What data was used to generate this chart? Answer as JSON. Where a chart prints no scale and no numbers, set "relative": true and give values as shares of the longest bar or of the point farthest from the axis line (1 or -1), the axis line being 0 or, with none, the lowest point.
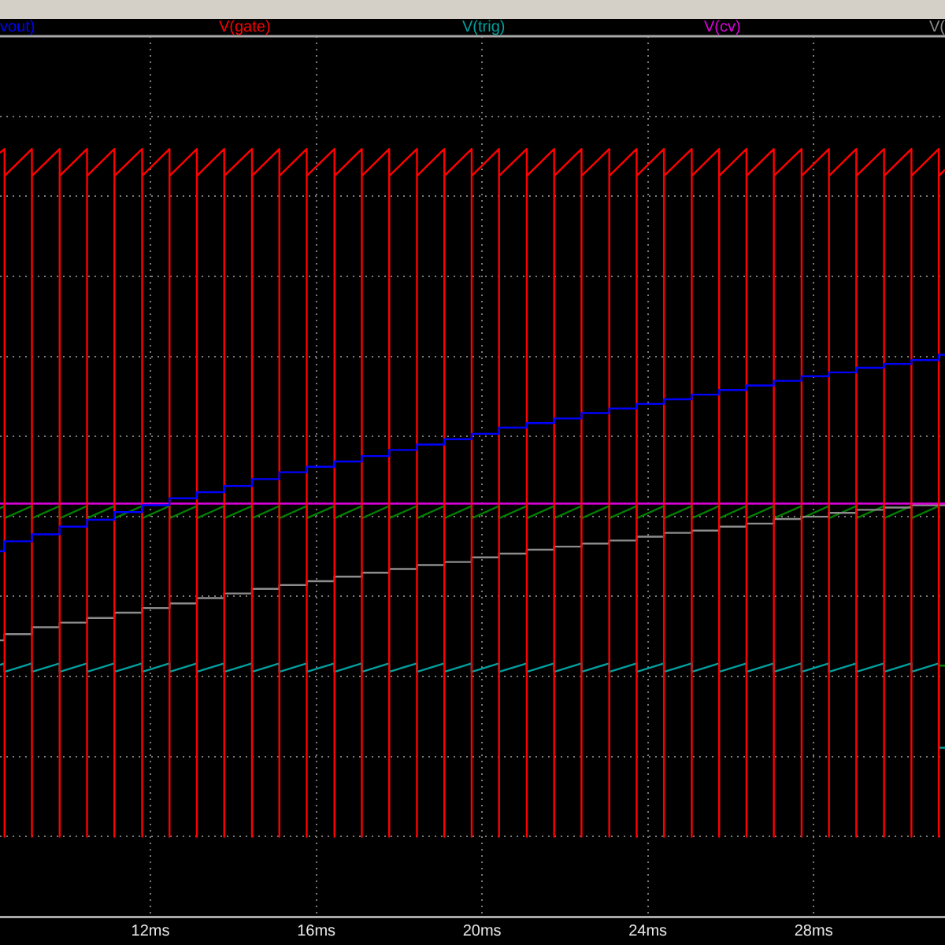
{
  "chart_data": {
    "type": "line",
    "relative": true,
    "grid": true,
    "legend": "top",
    "marker": "none",
    "xlim": [
      8.37,
      31.17
    ],
    "xticks": [
      {
        "value": 12,
        "label": "12ms"
      },
      {
        "value": 16,
        "label": "16ms"
      },
      {
        "value": 20,
        "label": "20ms"
      },
      {
        "value": 24,
        "label": "24ms"
      },
      {
        "value": 28,
        "label": "28ms"
      }
    ],
    "series": [
      {
        "name": "vout)",
        "type": "step",
        "color": "#0000ff",
        "x": [
          8.37,
          8.48,
          9.14,
          9.81,
          10.47,
          11.13,
          11.8,
          12.46,
          13.12,
          13.78,
          14.45,
          15.11,
          15.77,
          16.44,
          17.1,
          17.76,
          18.43,
          19.09,
          19.75,
          20.41,
          21.08,
          21.74,
          22.4,
          23.07,
          23.73,
          24.39,
          25.06,
          25.72,
          26.38,
          27.04,
          27.71,
          28.37,
          29.03,
          29.7,
          30.36,
          31.02,
          31.17
        ],
        "values": [
          0.476,
          0.489,
          0.498,
          0.508,
          0.517,
          0.527,
          0.536,
          0.545,
          0.553,
          0.561,
          0.57,
          0.579,
          0.586,
          0.593,
          0.6,
          0.608,
          0.615,
          0.622,
          0.629,
          0.637,
          0.643,
          0.649,
          0.656,
          0.662,
          0.668,
          0.674,
          0.68,
          0.686,
          0.692,
          0.698,
          0.704,
          0.709,
          0.715,
          0.72,
          0.725,
          0.732,
          0.732
        ]
      },
      {
        "name": "V(gate)",
        "type": "line",
        "color": "#ff0000",
        "x": [
          8.37,
          8.48,
          8.48,
          8.48,
          9.14,
          9.14,
          9.14,
          9.81,
          9.81,
          9.81,
          10.47,
          10.47,
          10.47,
          11.13,
          11.13,
          11.13,
          11.8,
          11.8,
          11.8,
          12.46,
          12.46,
          12.46,
          13.12,
          13.12,
          13.12,
          13.78,
          13.78,
          13.78,
          14.45,
          14.45,
          14.45,
          15.11,
          15.11,
          15.11,
          15.77,
          15.77,
          15.77,
          16.44,
          16.44,
          16.44,
          17.1,
          17.1,
          17.1,
          17.76,
          17.76,
          17.76,
          18.43,
          18.43,
          18.43,
          19.09,
          19.09,
          19.09,
          19.75,
          19.75,
          19.75,
          20.41,
          20.41,
          20.41,
          21.08,
          21.08,
          21.08,
          21.74,
          21.74,
          21.74,
          22.4,
          22.4,
          22.4,
          23.07,
          23.07,
          23.07,
          23.73,
          23.73,
          23.73,
          24.39,
          24.39,
          24.39,
          25.06,
          25.06,
          25.06,
          25.72,
          25.72,
          25.72,
          26.38,
          26.38,
          26.38,
          27.04,
          27.04,
          27.04,
          27.71,
          27.71,
          27.71,
          28.37,
          28.37,
          28.37,
          29.03,
          29.03,
          29.03,
          29.7,
          29.7,
          29.7,
          30.36,
          30.36,
          30.36,
          31.02,
          31.02,
          31.02,
          31.17
        ],
        "values": [
          0.995,
          1,
          0.104,
          0.965,
          1,
          0.104,
          0.965,
          1,
          0.104,
          0.965,
          1,
          0.104,
          0.965,
          1,
          0.104,
          0.965,
          1,
          0.104,
          0.965,
          1,
          0.104,
          0.965,
          1,
          0.104,
          0.965,
          1,
          0.104,
          0.965,
          1,
          0.104,
          0.965,
          1,
          0.104,
          0.965,
          1,
          0.104,
          0.965,
          1,
          0.104,
          0.965,
          1,
          0.104,
          0.965,
          1,
          0.104,
          0.965,
          1,
          0.104,
          0.965,
          1,
          0.104,
          0.965,
          1,
          0.104,
          0.965,
          1,
          0.104,
          0.965,
          1,
          0.104,
          0.965,
          1,
          0.104,
          0.965,
          1,
          0.104,
          0.965,
          1,
          0.104,
          0.965,
          1,
          0.104,
          0.965,
          1,
          0.104,
          0.965,
          1,
          0.104,
          0.965,
          1,
          0.104,
          0.965,
          1,
          0.104,
          0.965,
          1,
          0.104,
          0.965,
          1,
          0.104,
          0.965,
          1,
          0.104,
          0.965,
          1,
          0.104,
          0.965,
          1,
          0.104,
          0.965,
          1,
          0.104,
          0.965,
          1,
          0.104,
          0.965,
          0.973
        ]
      },
      {
        "name": "V(trig)",
        "type": "line",
        "color": "#00a0a0",
        "x": [
          8.37,
          8.48,
          8.48,
          9.14,
          9.14,
          9.81,
          9.81,
          10.47,
          10.47,
          11.13,
          11.13,
          11.8,
          11.8,
          12.46,
          12.46,
          13.12,
          13.12,
          13.78,
          13.78,
          14.45,
          14.45,
          15.11,
          15.11,
          15.77,
          15.77,
          16.44,
          16.44,
          17.1,
          17.1,
          17.76,
          17.76,
          18.43,
          18.43,
          19.09,
          19.09,
          19.75,
          19.75,
          20.41,
          20.41,
          21.08,
          21.08,
          21.74,
          21.74,
          22.4,
          22.4,
          23.07,
          23.07,
          23.73,
          23.73,
          24.39,
          24.39,
          25.06,
          25.06,
          25.72,
          25.72,
          26.38,
          26.38,
          27.04,
          27.04,
          27.71,
          27.71,
          28.37,
          28.37,
          29.03,
          29.03,
          29.7,
          29.7,
          30.36,
          30.36,
          31.02,
          31.02,
          31.17
        ],
        "values": [
          0.328,
          0.33,
          0.319,
          0.33,
          0.319,
          0.33,
          0.319,
          0.33,
          0.319,
          0.33,
          0.319,
          0.33,
          0.319,
          0.33,
          0.319,
          0.33,
          0.319,
          0.33,
          0.319,
          0.33,
          0.319,
          0.33,
          0.319,
          0.33,
          0.319,
          0.33,
          0.319,
          0.33,
          0.319,
          0.33,
          0.319,
          0.33,
          0.319,
          0.33,
          0.319,
          0.33,
          0.319,
          0.33,
          0.319,
          0.33,
          0.319,
          0.33,
          0.319,
          0.33,
          0.319,
          0.33,
          0.319,
          0.33,
          0.319,
          0.33,
          0.319,
          0.33,
          0.319,
          0.33,
          0.319,
          0.33,
          0.319,
          0.33,
          0.319,
          0.33,
          0.319,
          0.33,
          0.319,
          0.33,
          0.319,
          0.33,
          0.319,
          0.33,
          0.319,
          0.33,
          0.22,
          0.22
        ]
      },
      {
        "name": "V(cv)",
        "type": "line",
        "color": "#e000e0",
        "x": [
          8.37,
          31.17
        ],
        "values": [
          0.538,
          0.538
        ]
      },
      {
        "name": "V(",
        "type": "step",
        "color": "#8c8c8c",
        "x": [
          8.37,
          8.48,
          9.14,
          9.81,
          10.47,
          11.13,
          11.8,
          12.46,
          13.12,
          13.78,
          14.45,
          15.11,
          15.77,
          16.44,
          17.1,
          17.76,
          18.43,
          19.09,
          19.75,
          20.41,
          21.08,
          21.74,
          22.4,
          23.07,
          23.73,
          24.39,
          25.06,
          25.72,
          26.38,
          27.04,
          27.71,
          28.37,
          29.03,
          29.7,
          30.36,
          31.02,
          31.17
        ],
        "values": [
          0.36,
          0.368,
          0.377,
          0.383,
          0.389,
          0.396,
          0.402,
          0.408,
          0.415,
          0.421,
          0.427,
          0.432,
          0.437,
          0.443,
          0.448,
          0.453,
          0.458,
          0.462,
          0.468,
          0.473,
          0.478,
          0.482,
          0.486,
          0.49,
          0.495,
          0.5,
          0.503,
          0.508,
          0.512,
          0.518,
          0.521,
          0.526,
          0.53,
          0.533,
          0.536,
          0.536,
          0.536
        ]
      },
      {
        "type": "line",
        "color": "#008000",
        "x": [
          8.37,
          8.48,
          8.48,
          9.14,
          9.14,
          9.81,
          9.81,
          10.47,
          10.47,
          11.13,
          11.13,
          11.8,
          11.8,
          12.46,
          12.46,
          13.12,
          13.12,
          13.78,
          13.78,
          14.45,
          14.45,
          15.11,
          15.11,
          15.77,
          15.77,
          16.44,
          16.44,
          17.1,
          17.1,
          17.76,
          17.76,
          18.43,
          18.43,
          19.09,
          19.09,
          19.75,
          19.75,
          20.41,
          20.41,
          21.08,
          21.08,
          21.74,
          21.74,
          22.4,
          22.4,
          23.07,
          23.07,
          23.73,
          23.73,
          24.39,
          24.39,
          25.06,
          25.06,
          25.72,
          25.72,
          26.38,
          26.38,
          27.04,
          27.04,
          27.71,
          27.71,
          28.37,
          28.37,
          29.03,
          29.03,
          29.7,
          29.7,
          30.36,
          30.36,
          31.02,
          31.02,
          31.17
        ],
        "values": [
          0.532,
          0.535,
          0.519,
          0.535,
          0.519,
          0.535,
          0.519,
          0.535,
          0.519,
          0.535,
          0.519,
          0.535,
          0.519,
          0.535,
          0.519,
          0.535,
          0.519,
          0.535,
          0.519,
          0.535,
          0.519,
          0.535,
          0.519,
          0.535,
          0.519,
          0.535,
          0.519,
          0.535,
          0.519,
          0.535,
          0.519,
          0.535,
          0.519,
          0.535,
          0.519,
          0.535,
          0.519,
          0.535,
          0.519,
          0.535,
          0.519,
          0.535,
          0.519,
          0.535,
          0.519,
          0.535,
          0.519,
          0.535,
          0.519,
          0.535,
          0.519,
          0.535,
          0.519,
          0.535,
          0.519,
          0.535,
          0.519,
          0.535,
          0.519,
          0.535,
          0.519,
          0.535,
          0.519,
          0.535,
          0.519,
          0.535,
          0.519,
          0.535,
          0.519,
          0.535,
          0.327,
          0.327
        ]
      }
    ]
  }
}
